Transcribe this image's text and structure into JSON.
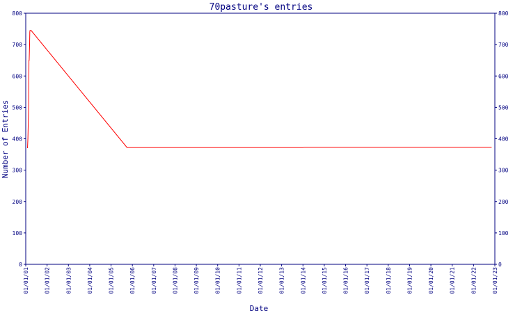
{
  "chart_data": {
    "type": "line",
    "title": "70pasture's entries",
    "xlabel": "Date",
    "ylabel": "Number of Entries",
    "ylim": [
      0,
      800
    ],
    "yticks": [
      0,
      100,
      200,
      300,
      400,
      500,
      600,
      700,
      800
    ],
    "xticks": [
      "01/01/01",
      "01/01/02",
      "01/01/03",
      "01/01/04",
      "01/01/05",
      "01/01/06",
      "01/01/07",
      "01/01/08",
      "01/01/09",
      "01/01/10",
      "01/01/11",
      "01/01/12",
      "01/01/13",
      "01/01/14",
      "01/01/15",
      "01/01/16",
      "01/01/17",
      "01/01/18",
      "01/01/19",
      "01/01/20",
      "01/01/21",
      "01/01/22",
      "01/01/23"
    ],
    "y_axis_right": true,
    "grid": false,
    "colors": {
      "axis": "#000080",
      "series": "#ff0000",
      "background": "#ffffff"
    },
    "series": [
      {
        "color": "#ff0000",
        "x": [
          "01/01/01",
          "01/01/01",
          "01/01/01",
          "01/01/01",
          "01/01/01",
          "01/01/01",
          "01/01/01",
          "01/01/01",
          "01/01/01",
          "01/01/01",
          "01/01/01",
          "01/01/05",
          "01/01/14",
          "01/01/14",
          "01/01/22"
        ],
        "x_offset": [
          0.08,
          0.1,
          0.12,
          0.14,
          0.15,
          0.16,
          0.18,
          0.19,
          0.2,
          0.22,
          0.25,
          0.75,
          0.0,
          0.05,
          0.85
        ],
        "y": [
          370,
          400,
          460,
          500,
          650,
          650,
          700,
          740,
          745,
          745,
          745,
          372,
          372,
          373,
          373
        ]
      }
    ]
  }
}
